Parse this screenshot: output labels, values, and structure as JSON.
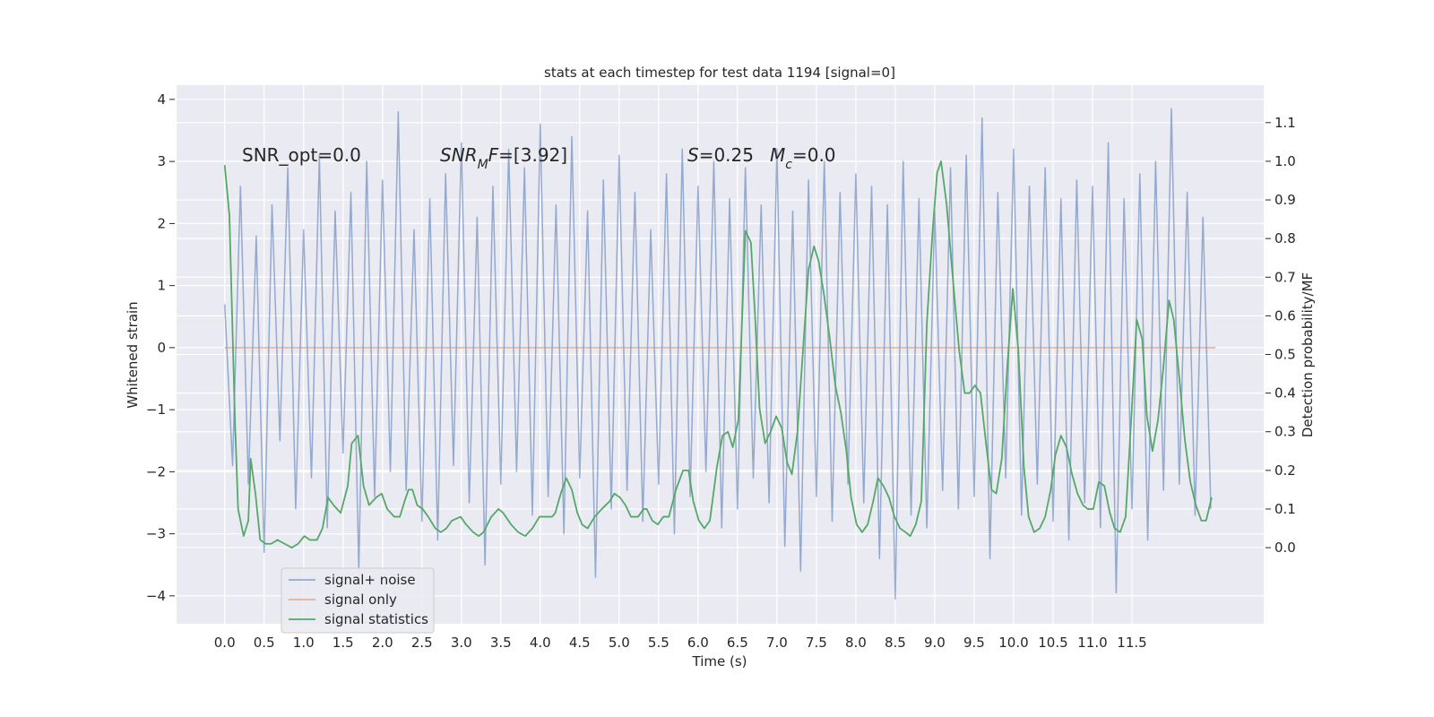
{
  "chart_data": {
    "type": "line",
    "title": "stats at each timestep for test data 1194 [signal=0]",
    "xlabel": "Time (s)",
    "ylabel": "Whitened strain",
    "y2label": "Detection probability/MF",
    "grid": true,
    "legend": "lower left",
    "xlim": [
      -0.61,
      13.17
    ],
    "ylim": [
      -4.45,
      4.23
    ],
    "y2lim": [
      -0.197,
      1.197
    ],
    "xticks": [
      {
        "value": 0,
        "label": "0.0"
      },
      0.5,
      {
        "value": 1,
        "label": "1.0"
      },
      1.5,
      {
        "value": 2,
        "label": "2.0"
      },
      2.5,
      {
        "value": 3,
        "label": "3.0"
      },
      3.5,
      {
        "value": 4,
        "label": "4.0"
      },
      4.5,
      {
        "value": 5,
        "label": "5.0"
      },
      5.5,
      {
        "value": 6,
        "label": "6.0"
      },
      6.5,
      {
        "value": 7,
        "label": "7.0"
      },
      7.5,
      {
        "value": 8,
        "label": "8.0"
      },
      8.5,
      {
        "value": 9,
        "label": "9.0"
      },
      9.5,
      {
        "value": 10,
        "label": "10.0"
      },
      10.5,
      {
        "value": 11,
        "label": "11.0"
      },
      11.5
    ],
    "yticks": [
      {
        "value": -4,
        "label": "−4"
      },
      {
        "value": -3,
        "label": "−3"
      },
      {
        "value": -2,
        "label": "−2"
      },
      {
        "value": -1,
        "label": "−1"
      },
      0,
      1,
      2,
      3,
      4
    ],
    "y2ticks": [
      {
        "value": 0,
        "label": "0.0"
      },
      0.1,
      0.2,
      0.3,
      0.4,
      0.5,
      0.6,
      0.7,
      0.8,
      0.9,
      {
        "value": 1,
        "label": "1.0"
      },
      1.1
    ],
    "annotations": [
      [
        {
          "text": "SNR_opt=0.0"
        }
      ],
      [
        {
          "text": "SNR",
          "italic": true
        },
        {
          "text": "M",
          "italic": true,
          "sub": true
        },
        {
          "text": "F",
          "italic": true
        },
        {
          "text": "=[3.92]"
        }
      ],
      [
        {
          "text": "S",
          "italic": true
        },
        {
          "text": "=0.25"
        }
      ],
      [
        {
          "text": "M",
          "italic": true
        },
        {
          "text": "c",
          "italic": true,
          "sub": true
        },
        {
          "text": "=0.0"
        }
      ]
    ],
    "series": [
      {
        "name": "signal+ noise",
        "color": "#4c72b0",
        "axis": "y",
        "x": [
          0,
          0.1,
          0.2,
          0.3,
          0.4,
          0.5,
          0.6,
          0.7,
          0.8,
          0.9,
          1,
          1.1,
          1.2,
          1.3,
          1.4,
          1.5,
          1.6,
          1.7,
          1.8,
          1.9,
          2,
          2.1,
          2.2,
          2.3,
          2.4,
          2.5,
          2.6,
          2.7,
          2.8,
          2.9,
          3,
          3.1,
          3.2,
          3.3,
          3.4,
          3.5,
          3.6,
          3.7,
          3.8,
          3.9,
          4,
          4.1,
          4.2,
          4.3,
          4.4,
          4.5,
          4.6,
          4.7,
          4.8,
          4.9,
          5,
          5.1,
          5.2,
          5.3,
          5.4,
          5.5,
          5.6,
          5.7,
          5.8,
          5.9,
          6,
          6.1,
          6.2,
          6.3,
          6.4,
          6.5,
          6.6,
          6.7,
          6.8,
          6.9,
          7,
          7.1,
          7.2,
          7.3,
          7.4,
          7.5,
          7.6,
          7.7,
          7.8,
          7.9,
          8,
          8.1,
          8.2,
          8.3,
          8.4,
          8.5,
          8.6,
          8.7,
          8.8,
          8.9,
          9,
          9.1,
          9.2,
          9.3,
          9.4,
          9.5,
          9.6,
          9.7,
          9.8,
          9.9,
          10,
          10.1,
          10.2,
          10.3,
          10.4,
          10.5,
          10.6,
          10.7,
          10.8,
          10.9,
          11,
          11.1,
          11.2,
          11.3,
          11.4,
          11.5,
          11.6,
          11.7,
          11.8,
          11.9,
          12,
          12.1,
          12.2,
          12.3,
          12.4,
          12.5
        ],
        "values": [
          0.7,
          -1.9,
          2.6,
          -2.2,
          1.8,
          -3.3,
          2.3,
          -1.5,
          2.9,
          -2.6,
          1.9,
          -2.1,
          3.1,
          -2.9,
          2.2,
          -1.7,
          2.5,
          -3.6,
          3.0,
          -2.4,
          2.7,
          -2.0,
          3.8,
          -2.3,
          1.9,
          -2.8,
          2.4,
          -3.1,
          2.8,
          -1.9,
          3.3,
          -2.5,
          2.1,
          -3.5,
          2.6,
          -2.2,
          3.2,
          -2.0,
          2.9,
          -2.7,
          3.6,
          -2.4,
          2.3,
          -3.0,
          3.4,
          -2.1,
          2.2,
          -3.7,
          2.7,
          -2.6,
          3.1,
          -2.3,
          2.5,
          -2.8,
          1.9,
          -2.2,
          2.8,
          -3.0,
          3.2,
          -2.4,
          2.6,
          -2.0,
          3.0,
          -2.9,
          2.4,
          -2.6,
          2.9,
          -2.1,
          2.3,
          -2.5,
          3.2,
          -3.2,
          2.2,
          -3.6,
          2.7,
          -2.4,
          3.0,
          -2.8,
          2.5,
          -2.2,
          2.8,
          -2.5,
          2.6,
          -3.4,
          2.3,
          -4.05,
          3.0,
          -2.7,
          2.4,
          -2.9,
          2.2,
          -2.3,
          2.9,
          -2.6,
          3.1,
          -2.4,
          3.7,
          -3.4,
          2.5,
          -2.1,
          3.2,
          -2.7,
          2.6,
          -2.2,
          2.9,
          -2.8,
          2.4,
          -3.1,
          2.7,
          -2.5,
          2.6,
          -2.9,
          3.3,
          -3.95,
          2.4,
          -2.6,
          2.8,
          -3.1,
          3.0,
          -2.3,
          3.85,
          -2.2,
          2.5,
          -2.7,
          2.1,
          -2.6
        ]
      },
      {
        "name": "signal only",
        "color": "#dd8452",
        "axis": "y",
        "x": [
          0,
          12.56
        ],
        "values": [
          0,
          0
        ]
      },
      {
        "name": "signal statistics",
        "color": "#55a868",
        "axis": "y2",
        "x": [
          0,
          0.06,
          0.13,
          0.17,
          0.24,
          0.3,
          0.33,
          0.39,
          0.45,
          0.52,
          0.59,
          0.67,
          0.76,
          0.85,
          0.93,
          1.01,
          1.08,
          1.17,
          1.24,
          1.31,
          1.38,
          1.47,
          1.56,
          1.61,
          1.69,
          1.76,
          1.83,
          1.92,
          1.99,
          2.06,
          2.15,
          2.22,
          2.28,
          2.33,
          2.38,
          2.44,
          2.51,
          2.58,
          2.67,
          2.74,
          2.81,
          2.88,
          2.99,
          3.06,
          3.15,
          3.22,
          3.28,
          3.38,
          3.47,
          3.53,
          3.63,
          3.72,
          3.81,
          3.9,
          3.99,
          4.08,
          4.15,
          4.19,
          4.26,
          4.33,
          4.4,
          4.47,
          4.53,
          4.6,
          4.69,
          4.78,
          4.88,
          4.94,
          5.01,
          5.08,
          5.15,
          5.24,
          5.31,
          5.35,
          5.42,
          5.49,
          5.56,
          5.63,
          5.72,
          5.81,
          5.88,
          5.94,
          6.01,
          6.08,
          6.15,
          6.24,
          6.31,
          6.38,
          6.44,
          6.51,
          6.6,
          6.67,
          6.72,
          6.78,
          6.85,
          6.92,
          6.99,
          7.06,
          7.13,
          7.19,
          7.26,
          7.33,
          7.4,
          7.47,
          7.53,
          7.6,
          7.67,
          7.74,
          7.81,
          7.88,
          7.94,
          8.01,
          8.08,
          8.15,
          8.22,
          8.28,
          8.35,
          8.42,
          8.49,
          8.56,
          8.63,
          8.69,
          8.76,
          8.83,
          8.9,
          8.97,
          9.03,
          9.08,
          9.15,
          9.22,
          9.31,
          9.38,
          9.44,
          9.51,
          9.58,
          9.65,
          9.72,
          9.78,
          9.85,
          9.92,
          9.99,
          10.06,
          10.13,
          10.19,
          10.26,
          10.33,
          10.4,
          10.47,
          10.53,
          10.6,
          10.67,
          10.74,
          10.81,
          10.88,
          10.94,
          11.01,
          11.08,
          11.15,
          11.22,
          11.28,
          11.35,
          11.42,
          11.49,
          11.56,
          11.63,
          11.69,
          11.76,
          11.83,
          11.9,
          11.97,
          12.03,
          12.1,
          12.17,
          12.24,
          12.31,
          12.38,
          12.44,
          12.51
        ],
        "values": [
          0.99,
          0.86,
          0.33,
          0.1,
          0.03,
          0.07,
          0.23,
          0.14,
          0.02,
          0.01,
          0.01,
          0.02,
          0.01,
          0.0,
          0.01,
          0.03,
          0.02,
          0.02,
          0.05,
          0.13,
          0.11,
          0.09,
          0.16,
          0.27,
          0.29,
          0.16,
          0.11,
          0.13,
          0.14,
          0.1,
          0.08,
          0.08,
          0.12,
          0.15,
          0.15,
          0.11,
          0.1,
          0.08,
          0.05,
          0.04,
          0.05,
          0.07,
          0.08,
          0.06,
          0.04,
          0.03,
          0.04,
          0.08,
          0.1,
          0.09,
          0.06,
          0.04,
          0.03,
          0.05,
          0.08,
          0.08,
          0.08,
          0.09,
          0.14,
          0.18,
          0.15,
          0.09,
          0.06,
          0.05,
          0.08,
          0.1,
          0.12,
          0.14,
          0.13,
          0.11,
          0.08,
          0.08,
          0.1,
          0.1,
          0.07,
          0.06,
          0.08,
          0.08,
          0.15,
          0.2,
          0.2,
          0.12,
          0.07,
          0.05,
          0.07,
          0.21,
          0.29,
          0.3,
          0.26,
          0.33,
          0.82,
          0.79,
          0.61,
          0.36,
          0.27,
          0.3,
          0.34,
          0.31,
          0.22,
          0.19,
          0.3,
          0.51,
          0.72,
          0.78,
          0.74,
          0.65,
          0.54,
          0.42,
          0.35,
          0.25,
          0.13,
          0.06,
          0.04,
          0.06,
          0.12,
          0.18,
          0.16,
          0.13,
          0.08,
          0.05,
          0.04,
          0.03,
          0.06,
          0.12,
          0.58,
          0.81,
          0.97,
          1.0,
          0.89,
          0.72,
          0.51,
          0.4,
          0.4,
          0.42,
          0.4,
          0.27,
          0.15,
          0.14,
          0.23,
          0.47,
          0.67,
          0.51,
          0.21,
          0.08,
          0.04,
          0.05,
          0.08,
          0.15,
          0.24,
          0.29,
          0.26,
          0.19,
          0.14,
          0.11,
          0.1,
          0.1,
          0.17,
          0.16,
          0.09,
          0.05,
          0.04,
          0.08,
          0.33,
          0.59,
          0.54,
          0.34,
          0.25,
          0.33,
          0.47,
          0.64,
          0.59,
          0.44,
          0.28,
          0.17,
          0.11,
          0.07,
          0.07,
          0.13
        ]
      }
    ]
  }
}
